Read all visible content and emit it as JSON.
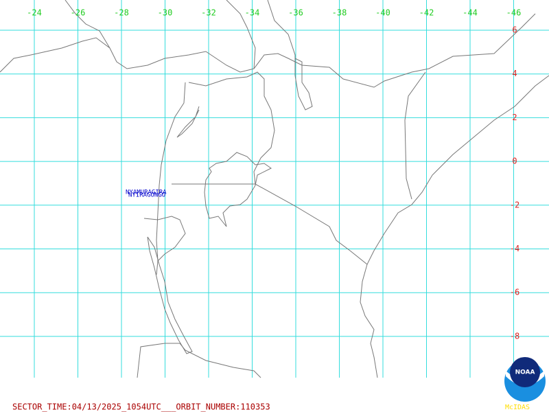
{
  "longitude_labels": [
    "-24",
    "-26",
    "-28",
    "-30",
    "-32",
    "-34",
    "-36",
    "-38",
    "-40",
    "-42",
    "-44",
    "-46"
  ],
  "latitude_labels": [
    "6",
    "4",
    "2",
    "0",
    "-2",
    "-4",
    "-6",
    "-8"
  ],
  "stations": [
    "NYAMURAGIRA",
    "NYIRAGONGO"
  ],
  "footer": "SECTOR_TIME:04/13/2025_1054UTC___ORBIT_NUMBER:110353",
  "logo": {
    "name": "NOAA",
    "caption": "McIDAS"
  }
}
